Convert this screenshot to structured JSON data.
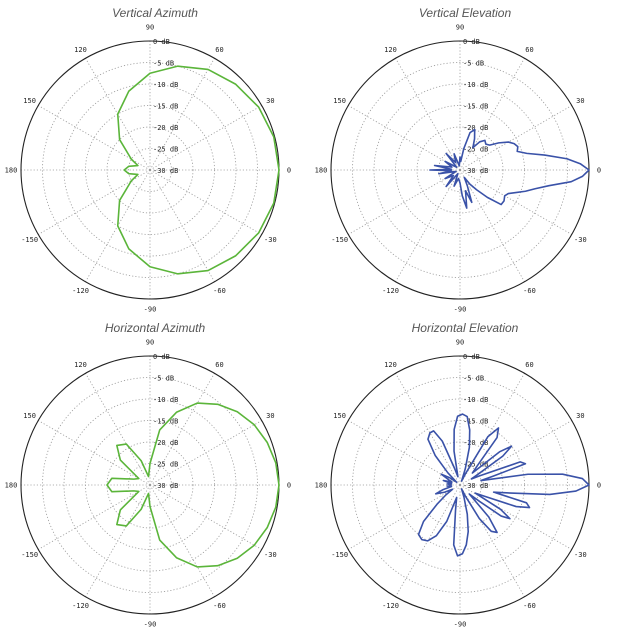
{
  "chart_data": [
    {
      "type": "polar",
      "title": "Vertical Azimuth",
      "r_unit": "dB",
      "r_range": [
        -30,
        0
      ],
      "grid": true,
      "ring_labels": [
        "0 dB",
        "-5 dB",
        "-10 dB",
        "-15 dB",
        "-20 dB",
        "-25 dB",
        "-30 dB"
      ],
      "angle_ticks": [
        {
          "deg": 90,
          "label": "90"
        },
        {
          "deg": 60,
          "label": "60"
        },
        {
          "deg": 30,
          "label": "30"
        },
        {
          "deg": 0,
          "label": "0"
        },
        {
          "deg": -30,
          "label": "-30"
        },
        {
          "deg": -60,
          "label": "-60"
        },
        {
          "deg": -90,
          "label": "-90"
        },
        {
          "deg": -120,
          "label": "-120"
        },
        {
          "deg": -150,
          "label": "-150"
        },
        {
          "deg": 180,
          "label": "180"
        },
        {
          "deg": 150,
          "label": "150"
        },
        {
          "deg": 120,
          "label": "120"
        }
      ],
      "series": [
        {
          "name": "Vertical Azimuth",
          "color": "#5bb53a",
          "angle": [
            0,
            15,
            30,
            45,
            60,
            75,
            90,
            105,
            120,
            135,
            150,
            160,
            170,
            180,
            -170,
            -160,
            -150,
            -135,
            -120,
            -105,
            -90,
            -75,
            -60,
            -45,
            -30,
            -15
          ],
          "value": [
            0,
            -0.2,
            -0.8,
            -1.8,
            -3,
            -5,
            -7.5,
            -11,
            -15,
            -20,
            -25,
            -27,
            -25,
            -24,
            -25,
            -27,
            -25,
            -20,
            -15,
            -11,
            -7.5,
            -5,
            -3,
            -1.8,
            -0.8,
            -0.2
          ]
        }
      ]
    },
    {
      "type": "polar",
      "title": "Vertical Elevation",
      "r_unit": "dB",
      "r_range": [
        -30,
        0
      ],
      "grid": true,
      "ring_labels": [
        "0 dB",
        "-5 dB",
        "-10 dB",
        "-15 dB",
        "-20 dB",
        "-25 dB",
        "-30 dB"
      ],
      "angle_ticks": [
        {
          "deg": 90,
          "label": "90"
        },
        {
          "deg": 60,
          "label": "60"
        },
        {
          "deg": 30,
          "label": "30"
        },
        {
          "deg": 0,
          "label": "0"
        },
        {
          "deg": -30,
          "label": "-30"
        },
        {
          "deg": -60,
          "label": "-60"
        },
        {
          "deg": -90,
          "label": "-90"
        },
        {
          "deg": -120,
          "label": "-120"
        },
        {
          "deg": -150,
          "label": "-150"
        },
        {
          "deg": 180,
          "label": "180"
        },
        {
          "deg": 150,
          "label": "150"
        },
        {
          "deg": 120,
          "label": "120"
        }
      ],
      "series": [
        {
          "name": "Vertical Elevation",
          "color": "#3a52a8",
          "angle": [
            0,
            3,
            6,
            10,
            14,
            18,
            22,
            26,
            30,
            35,
            40,
            45,
            50,
            55,
            60,
            65,
            70,
            75,
            80,
            85,
            90,
            100,
            110,
            120,
            130,
            140,
            150,
            160,
            170,
            175,
            180,
            -175,
            -170,
            -160,
            -150,
            -140,
            -130,
            -120,
            -110,
            -100,
            -90,
            -85,
            -80,
            -75,
            -70,
            -65,
            -60,
            -55,
            -50,
            -45,
            -40,
            -35,
            -30,
            -26,
            -22,
            -18,
            -14,
            -10,
            -6,
            -3
          ],
          "value": [
            0,
            -2,
            -5,
            -10,
            -14,
            -16,
            -15.5,
            -16,
            -17,
            -19,
            -21,
            -21.5,
            -21,
            -22,
            -24,
            -22,
            -20,
            -21,
            -25,
            -28,
            -27,
            -29,
            -26,
            -28,
            -25,
            -29,
            -26,
            -28,
            -24,
            -28,
            -23,
            -28,
            -25,
            -29,
            -26,
            -28,
            -25,
            -29,
            -26,
            -28,
            -27,
            -24,
            -21,
            -25,
            -22,
            -26,
            -28,
            -26,
            -24,
            -21,
            -17.5,
            -17.5,
            -18,
            -17.5,
            -16,
            -14,
            -12,
            -9,
            -4,
            -1.5
          ]
        }
      ]
    },
    {
      "type": "polar",
      "title": "Horizontal Azimuth",
      "r_unit": "dB",
      "r_range": [
        -30,
        0
      ],
      "grid": true,
      "ring_labels": [
        "0 dB",
        "-5 dB",
        "-10 dB",
        "-15 dB",
        "-20 dB",
        "-25 dB",
        "-30 dB"
      ],
      "angle_ticks": [
        {
          "deg": 90,
          "label": "90"
        },
        {
          "deg": 60,
          "label": "60"
        },
        {
          "deg": 30,
          "label": "30"
        },
        {
          "deg": 0,
          "label": "0"
        },
        {
          "deg": -30,
          "label": "-30"
        },
        {
          "deg": -60,
          "label": "-60"
        },
        {
          "deg": -90,
          "label": "-90"
        },
        {
          "deg": -120,
          "label": "-120"
        },
        {
          "deg": -150,
          "label": "-150"
        },
        {
          "deg": 180,
          "label": "180"
        },
        {
          "deg": 150,
          "label": "150"
        },
        {
          "deg": 120,
          "label": "120"
        }
      ],
      "series": [
        {
          "name": "Horizontal Azimuth",
          "color": "#5bb53a",
          "angle": [
            0,
            10,
            20,
            30,
            40,
            50,
            60,
            70,
            80,
            90,
            100,
            110,
            120,
            130,
            140,
            150,
            160,
            170,
            180,
            -170,
            -160,
            -150,
            -140,
            -130,
            -120,
            -110,
            -100,
            -90,
            -80,
            -70,
            -60,
            -50,
            -40,
            -30,
            -20,
            -10
          ],
          "value": [
            0,
            -0.3,
            -1,
            -2,
            -3.5,
            -5.5,
            -8,
            -12,
            -17,
            -25,
            -28,
            -24,
            -19,
            -18,
            -21,
            -27,
            -26,
            -21,
            -20,
            -21,
            -26,
            -27,
            -21,
            -18,
            -19,
            -24,
            -28,
            -25,
            -17,
            -12,
            -8,
            -5.5,
            -3.5,
            -2,
            -1,
            -0.3
          ]
        }
      ]
    },
    {
      "type": "polar",
      "title": "Horizontal Elevation",
      "r_unit": "dB",
      "r_range": [
        -30,
        0
      ],
      "grid": true,
      "ring_labels": [
        "0 dB",
        "-5 dB",
        "-10 dB",
        "-15 dB",
        "-20 dB",
        "-25 dB",
        "-30 dB"
      ],
      "angle_ticks": [
        {
          "deg": 90,
          "label": "90"
        },
        {
          "deg": 60,
          "label": "60"
        },
        {
          "deg": 30,
          "label": "30"
        },
        {
          "deg": 0,
          "label": "0"
        },
        {
          "deg": -30,
          "label": "-30"
        },
        {
          "deg": -60,
          "label": "-60"
        },
        {
          "deg": -90,
          "label": "-90"
        },
        {
          "deg": -120,
          "label": "-120"
        },
        {
          "deg": -150,
          "label": "-150"
        },
        {
          "deg": 180,
          "label": "180"
        },
        {
          "deg": 150,
          "label": "150"
        },
        {
          "deg": 120,
          "label": "120"
        }
      ],
      "series": [
        {
          "name": "Horizontal Elevation",
          "color": "#3a52a8",
          "angle": [
            0,
            3,
            6,
            9,
            12,
            15,
            18,
            21,
            25,
            28,
            31,
            34,
            37,
            40,
            44,
            48,
            52,
            56,
            60,
            64,
            68,
            72,
            76,
            80,
            84,
            88,
            92,
            96,
            100,
            104,
            108,
            112,
            116,
            120,
            125,
            130,
            135,
            140,
            145,
            150,
            155,
            160,
            165,
            170,
            175,
            180,
            -175,
            -170,
            -165,
            -160,
            -155,
            -150,
            -145,
            -140,
            -135,
            -130,
            -125,
            -120,
            -115,
            -110,
            -105,
            -100,
            -96,
            -92,
            -88,
            -84,
            -80,
            -76,
            -72,
            -68,
            -64,
            -60,
            -56,
            -52,
            -48,
            -44,
            -40,
            -37,
            -34,
            -31,
            -28,
            -25,
            -21,
            -18,
            -15,
            -12,
            -9,
            -6,
            -3
          ],
          "value": [
            0,
            -1.5,
            -6,
            -14,
            -25,
            -22,
            -14,
            -15,
            -25,
            -27,
            -25,
            -18,
            -15,
            -18,
            -26,
            -24,
            -16,
            -14,
            -17,
            -27,
            -29,
            -26,
            -21,
            -17,
            -14,
            -13.5,
            -14,
            -17,
            -22,
            -28,
            -26,
            -19,
            -16,
            -16,
            -17,
            -21,
            -26,
            -29,
            -27,
            -25,
            -27,
            -28,
            -26,
            -28,
            -27,
            -28,
            -27,
            -28,
            -26,
            -24,
            -26,
            -28,
            -26,
            -23,
            -18,
            -15,
            -14.5,
            -15,
            -17,
            -21,
            -27,
            -24,
            -16,
            -13.5,
            -14,
            -16,
            -19,
            -23,
            -27,
            -29,
            -27,
            -21,
            -17,
            -16,
            -20,
            -27,
            -24,
            -18,
            -16,
            -19,
            -26,
            -24,
            -16,
            -13,
            -14,
            -22,
            -18,
            -9,
            -3
          ]
        }
      ]
    }
  ]
}
